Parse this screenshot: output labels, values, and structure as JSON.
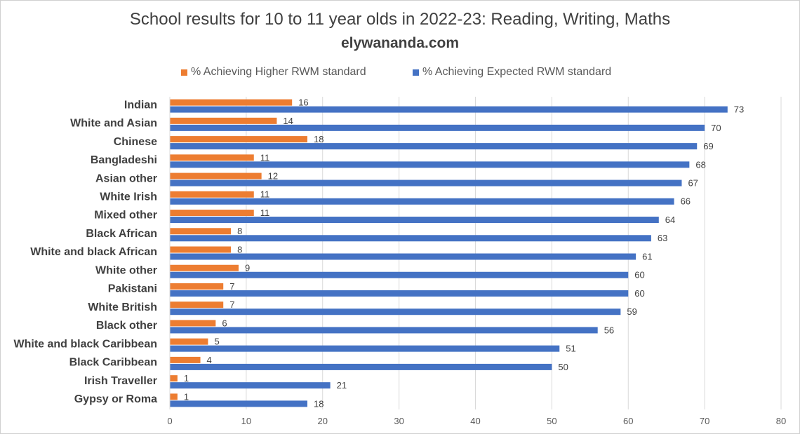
{
  "chart_data": {
    "type": "bar",
    "orientation": "horizontal",
    "title": "School results for 10 to 11 year olds in 2022-23: Reading, Writing, Maths",
    "subtitle": "elywananda.com",
    "categories": [
      "Indian",
      "White and Asian",
      "Chinese",
      "Bangladeshi",
      "Asian other",
      "White Irish",
      "Mixed other",
      "Black African",
      "White and black African",
      "White other",
      "Pakistani",
      "White British",
      "Black other",
      "White and black Caribbean",
      "Black Caribbean",
      "Irish Traveller",
      "Gypsy or Roma"
    ],
    "series": [
      {
        "name": "% Achieving Higher RWM standard",
        "color": "#ED7D31",
        "values": [
          16,
          14,
          18,
          11,
          12,
          11,
          11,
          8,
          8,
          9,
          7,
          7,
          6,
          5,
          4,
          1,
          1
        ]
      },
      {
        "name": "% Achieving Expected RWM standard",
        "color": "#4472C4",
        "values": [
          73,
          70,
          69,
          68,
          67,
          66,
          64,
          63,
          61,
          60,
          60,
          59,
          56,
          51,
          50,
          21,
          18
        ]
      }
    ],
    "xlim": [
      0,
      80
    ],
    "xticks": [
      0,
      10,
      20,
      30,
      40,
      50,
      60,
      70,
      80
    ],
    "grid": "vertical",
    "legend": "top",
    "data_labels": true
  }
}
